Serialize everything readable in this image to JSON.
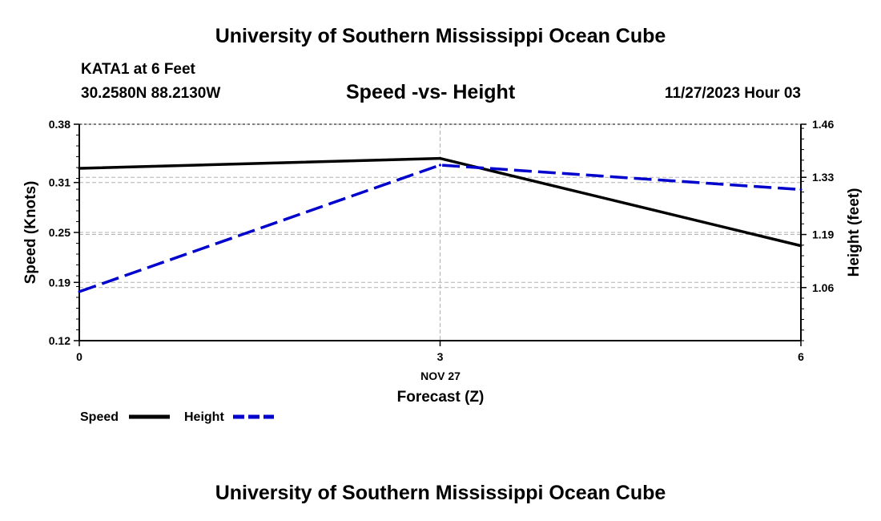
{
  "header": {
    "title": "University of Southern Mississippi Ocean Cube",
    "station": "KATA1 at 6 Feet",
    "coords": "30.2580N  88.2130W",
    "datetime": "11/27/2023 Hour 03",
    "footer_title": "University of Southern Mississippi Ocean Cube"
  },
  "chart_data": {
    "type": "line",
    "title": "Speed -vs- Height",
    "xlabel": "Forecast (Z)",
    "xlabel_date": "NOV 27",
    "ylabel": "Speed (Knots)",
    "ylabel_right": "Height (feet)",
    "x": [
      0,
      3,
      6
    ],
    "x_tick_labels": [
      "0",
      "3",
      "6"
    ],
    "xlim": [
      0,
      6
    ],
    "ylim": [
      0.12,
      0.38
    ],
    "ylim_right": [
      0.93,
      1.46
    ],
    "y_ticks": [
      0.12,
      0.19,
      0.25,
      0.31,
      0.38
    ],
    "y_tick_labels": [
      "0.12",
      "0.19",
      "0.25",
      "0.31",
      "0.38"
    ],
    "y_ticks_right": [
      1.06,
      1.19,
      1.33,
      1.46
    ],
    "y_tick_labels_right": [
      "1.06",
      "1.19",
      "1.33",
      "1.46"
    ],
    "grid": true,
    "legend_position": "bottom-left",
    "series": [
      {
        "name": "Speed",
        "axis": "left",
        "values": [
          0.327,
          0.339,
          0.234
        ],
        "color": "#000000",
        "dash": "solid"
      },
      {
        "name": "Height",
        "axis": "right",
        "values": [
          1.05,
          1.36,
          1.3
        ],
        "color": "#0000cc",
        "dash": "dashed"
      }
    ]
  }
}
